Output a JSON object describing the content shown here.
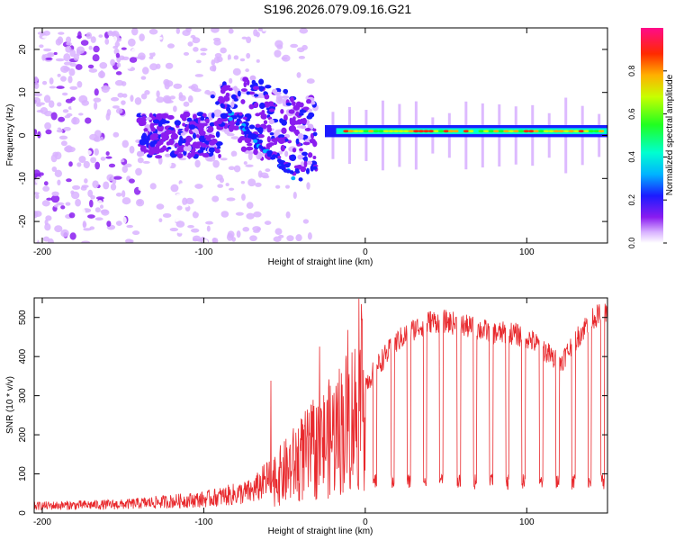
{
  "title": "S196.2026.079.09.16.G21",
  "chart_data": [
    {
      "type": "heatmap",
      "name": "spectrogram",
      "xlabel": "Height of straight line (km)",
      "ylabel": "Frequency (Hz)",
      "xlim": [
        -205,
        150
      ],
      "ylim": [
        -25,
        25
      ],
      "xticks": [
        -200,
        -100,
        0,
        100
      ],
      "xtick_labels": [
        "-200",
        "-100",
        "0",
        "100"
      ],
      "yticks": [
        20,
        10,
        0,
        -10,
        -20
      ],
      "ytick_labels": [
        "20",
        "10",
        "0",
        "-10",
        "-20"
      ],
      "colorbar": {
        "label": "Normalized spectral amplitude",
        "range": [
          0,
          1
        ],
        "ticks": [
          0.0,
          0.2,
          0.4,
          0.6,
          0.8
        ],
        "tick_labels": [
          "0.0",
          "0.2",
          "0.4",
          "0.6",
          "0.8"
        ]
      },
      "features": {
        "dominant_frequency_hz": 1,
        "high_amplitude_band_x_range": [
          -25,
          150
        ],
        "scattered_noise_x_range": [
          -205,
          -30
        ]
      }
    },
    {
      "type": "line",
      "name": "snr",
      "xlabel": "Height of straight line (km)",
      "ylabel": "SNR (10 * v/v)",
      "xlim": [
        -205,
        150
      ],
      "ylim": [
        0,
        550
      ],
      "xticks": [
        -200,
        -100,
        0,
        100
      ],
      "xtick_labels": [
        "-200",
        "-100",
        "0",
        "100"
      ],
      "yticks": [
        0,
        100,
        200,
        300,
        400,
        500
      ],
      "ytick_labels": [
        "0",
        "100",
        "200",
        "300",
        "400",
        "500"
      ],
      "series": [
        {
          "name": "SNR",
          "color": "#e8282c",
          "envelope_x": [
            -205,
            -150,
            -100,
            -70,
            -50,
            -40,
            -30,
            -20,
            -10,
            0,
            10,
            20,
            30,
            40,
            50,
            60,
            70,
            80,
            90,
            100,
            110,
            120,
            130,
            140,
            150
          ],
          "envelope_y": [
            18,
            22,
            35,
            55,
            120,
            160,
            190,
            230,
            280,
            330,
            390,
            440,
            470,
            490,
            490,
            480,
            470,
            460,
            460,
            450,
            420,
            380,
            440,
            500,
            510
          ]
        }
      ],
      "dropouts_x": [
        6,
        17,
        27,
        37,
        47,
        58,
        68,
        78,
        88,
        98,
        109,
        119,
        129,
        139,
        147
      ],
      "dropout_level": 60
    }
  ],
  "colors": {
    "line": "#e8282c",
    "background": "#ffffff",
    "axes": "#000000"
  }
}
